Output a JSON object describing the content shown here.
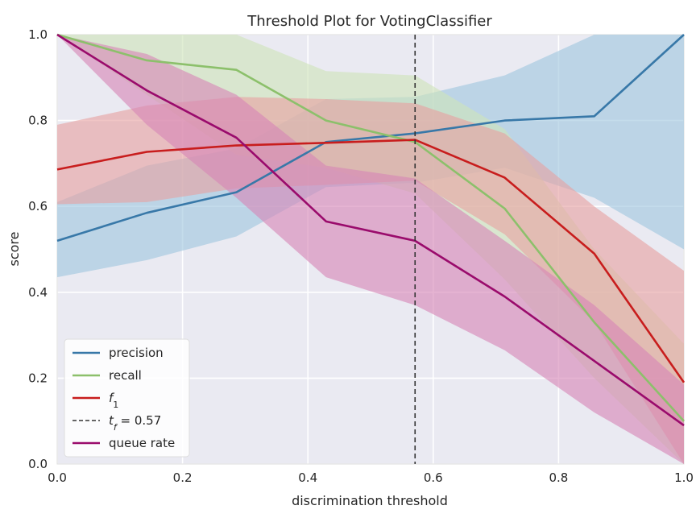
{
  "chart_data": {
    "type": "line",
    "title": "Threshold Plot for VotingClassifier",
    "xlabel": "discrimination threshold",
    "ylabel": "score",
    "xlim": [
      0.0,
      1.0
    ],
    "ylim": [
      0.0,
      1.0
    ],
    "xticks": [
      "0.0",
      "0.2",
      "0.4",
      "0.6",
      "0.8",
      "1.0"
    ],
    "yticks": [
      "0.0",
      "0.2",
      "0.4",
      "0.6",
      "0.8",
      "1.0"
    ],
    "grid": true,
    "legend_position": "lower-left",
    "x": [
      0.0,
      0.143,
      0.286,
      0.429,
      0.571,
      0.714,
      0.857,
      1.0
    ],
    "series": [
      {
        "name": "precision",
        "color": "#3878a8",
        "band_color": "#9fc6df",
        "values": [
          0.52,
          0.585,
          0.633,
          0.75,
          0.77,
          0.8,
          0.81,
          1.0
        ],
        "lower": [
          0.435,
          0.475,
          0.53,
          0.645,
          0.655,
          0.69,
          0.62,
          0.5
        ],
        "upper": [
          0.61,
          0.695,
          0.735,
          0.85,
          0.855,
          0.905,
          1.0,
          1.0
        ]
      },
      {
        "name": "recall",
        "color": "#8cc06b",
        "band_color": "#cfe3ba",
        "values": [
          1.0,
          0.94,
          0.918,
          0.8,
          0.75,
          0.595,
          0.33,
          0.1
        ],
        "lower": [
          1.0,
          0.86,
          0.72,
          0.69,
          0.63,
          0.43,
          0.2,
          0.0
        ],
        "upper": [
          1.0,
          1.0,
          1.0,
          0.915,
          0.905,
          0.78,
          0.5,
          0.28
        ]
      },
      {
        "name": "f₁",
        "color": "#c81d1d",
        "band_color": "#e6a2a2",
        "values": [
          0.686,
          0.727,
          0.742,
          0.748,
          0.755,
          0.667,
          0.49,
          0.19
        ],
        "lower": [
          0.605,
          0.61,
          0.642,
          0.65,
          0.66,
          0.535,
          0.33,
          0.0
        ],
        "upper": [
          0.79,
          0.835,
          0.855,
          0.85,
          0.84,
          0.77,
          0.6,
          0.45
        ]
      },
      {
        "name": "queue rate",
        "color": "#9a0b6c",
        "band_color": "#d786b6",
        "values": [
          1.0,
          0.87,
          0.76,
          0.565,
          0.52,
          0.39,
          0.24,
          0.09
        ],
        "lower": [
          1.0,
          0.79,
          0.62,
          0.435,
          0.37,
          0.265,
          0.12,
          0.0
        ],
        "upper": [
          1.0,
          0.955,
          0.86,
          0.695,
          0.665,
          0.52,
          0.37,
          0.185
        ]
      }
    ],
    "threshold": {
      "label": "t_f = 0.57",
      "value": 0.571,
      "color": "#333333"
    }
  },
  "legend": {
    "items": [
      {
        "label": "precision",
        "color": "#3878a8",
        "style": "solid"
      },
      {
        "label": "recall",
        "color": "#8cc06b",
        "style": "solid"
      },
      {
        "label": "f",
        "sub": "1",
        "color": "#c81d1d",
        "style": "solid",
        "italic": true
      },
      {
        "label": "t",
        "sub": "f",
        "suffix": " = 0.57",
        "color": "#333333",
        "style": "dashed",
        "italic": true
      },
      {
        "label": "queue rate",
        "color": "#9a0b6c",
        "style": "solid"
      }
    ]
  }
}
